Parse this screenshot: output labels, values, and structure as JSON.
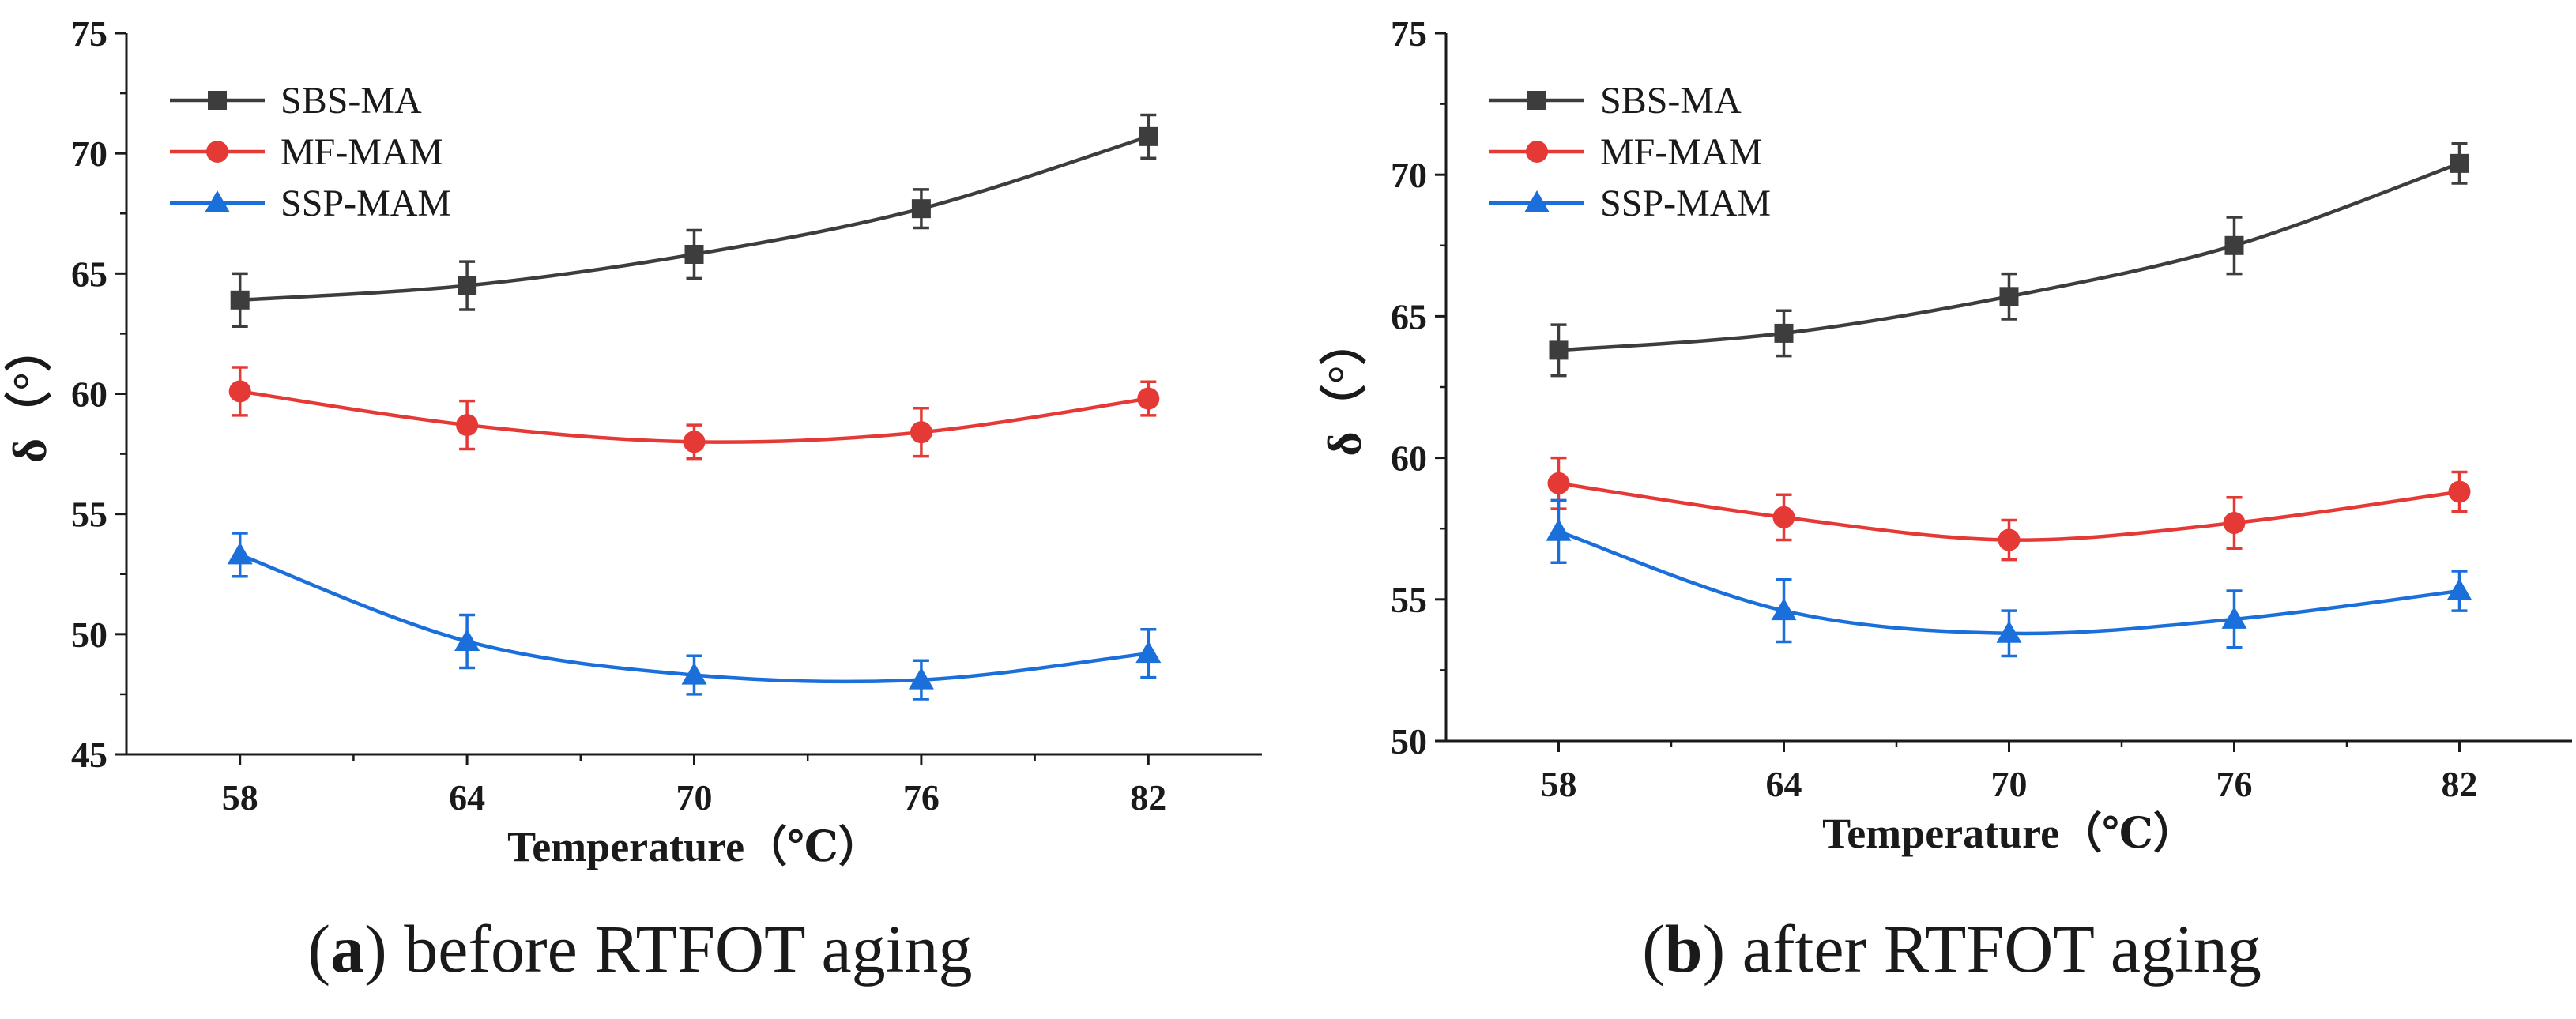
{
  "chart_data": [
    {
      "type": "line",
      "panel_label": "a",
      "caption": "before RTFOT aging",
      "xlabel": "Temperature（℃）",
      "ylabel": "δ（°）",
      "categories": [
        "58",
        "64",
        "70",
        "76",
        "82"
      ],
      "x": [
        58,
        64,
        70,
        76,
        82
      ],
      "xlim": [
        55,
        85
      ],
      "ylim": [
        45,
        75
      ],
      "yticks": [
        45,
        50,
        55,
        60,
        65,
        70,
        75
      ],
      "legend_position": "top-left",
      "series": [
        {
          "name": "SBS-MA",
          "marker": "square",
          "color": "#3d3d3d",
          "values": [
            63.9,
            64.5,
            65.8,
            67.7,
            70.7
          ],
          "errors": [
            1.1,
            1.0,
            1.0,
            0.8,
            0.9
          ]
        },
        {
          "name": "MF-MAM",
          "marker": "circle",
          "color": "#e53935",
          "values": [
            60.1,
            58.7,
            58.0,
            58.4,
            59.8
          ],
          "errors": [
            1.0,
            1.0,
            0.7,
            1.0,
            0.7
          ]
        },
        {
          "name": "SSP-MAM",
          "marker": "triangle",
          "color": "#1a6fdb",
          "values": [
            53.3,
            49.7,
            48.3,
            48.1,
            49.2
          ],
          "errors": [
            0.9,
            1.1,
            0.8,
            0.8,
            1.0
          ]
        }
      ]
    },
    {
      "type": "line",
      "panel_label": "b",
      "caption": "after RTFOT aging",
      "xlabel": "Temperature（℃）",
      "ylabel": "δ（°）",
      "categories": [
        "58",
        "64",
        "70",
        "76",
        "82"
      ],
      "x": [
        58,
        64,
        70,
        76,
        82
      ],
      "xlim": [
        55,
        85
      ],
      "ylim": [
        50,
        75
      ],
      "yticks": [
        50,
        55,
        60,
        65,
        70,
        75
      ],
      "legend_position": "top-left",
      "series": [
        {
          "name": "SBS-MA",
          "marker": "square",
          "color": "#3d3d3d",
          "values": [
            63.8,
            64.4,
            65.7,
            67.5,
            70.4
          ],
          "errors": [
            0.9,
            0.8,
            0.8,
            1.0,
            0.7
          ]
        },
        {
          "name": "MF-MAM",
          "marker": "circle",
          "color": "#e53935",
          "values": [
            59.1,
            57.9,
            57.1,
            57.7,
            58.8
          ],
          "errors": [
            0.9,
            0.8,
            0.7,
            0.9,
            0.7
          ]
        },
        {
          "name": "SSP-MAM",
          "marker": "triangle",
          "color": "#1a6fdb",
          "values": [
            57.4,
            54.6,
            53.8,
            54.3,
            55.3
          ],
          "errors": [
            1.1,
            1.1,
            0.8,
            1.0,
            0.7
          ]
        }
      ]
    }
  ]
}
